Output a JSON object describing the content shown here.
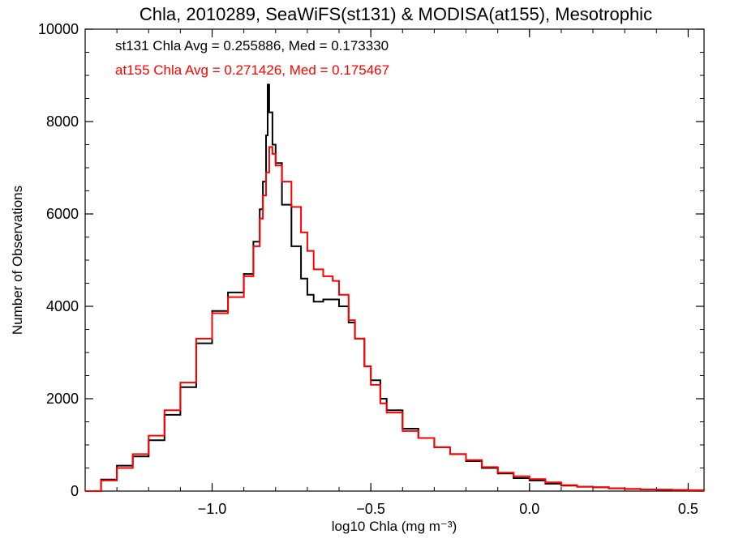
{
  "chart_data": {
    "type": "line",
    "title": "Chla, 2010289, SeaWiFS(st131) & MODISA(at155), Mesotrophic",
    "xlabel": "log10 Chla (mg m⁻³)",
    "ylabel": "Number of Observations",
    "xlim": [
      -1.4,
      0.55
    ],
    "ylim": [
      0,
      10000
    ],
    "x_ticks": [
      -1.0,
      -0.5,
      0.0,
      0.5
    ],
    "x_tick_labels": [
      "−1.0",
      "−0.5",
      "0.0",
      "0.5"
    ],
    "y_ticks": [
      0,
      2000,
      4000,
      6000,
      8000,
      10000
    ],
    "y_tick_labels": [
      "0",
      "2000",
      "4000",
      "6000",
      "8000",
      "10000"
    ],
    "grid": false,
    "annotations": [
      {
        "text": "st131 Chla Avg = 0.255886, Med = 0.173330",
        "color": "#000000"
      },
      {
        "text": "at155 Chla Avg = 0.271426, Med = 0.175467",
        "color": "#ff0000"
      }
    ],
    "series": [
      {
        "color": "#000000",
        "x": [
          -1.4,
          -1.35,
          -1.3,
          -1.25,
          -1.2,
          -1.15,
          -1.1,
          -1.05,
          -1.0,
          -0.95,
          -0.9,
          -0.87,
          -0.85,
          -0.84,
          -0.83,
          -0.825,
          -0.82,
          -0.81,
          -0.8,
          -0.78,
          -0.75,
          -0.72,
          -0.7,
          -0.68,
          -0.65,
          -0.6,
          -0.57,
          -0.55,
          -0.52,
          -0.5,
          -0.47,
          -0.45,
          -0.4,
          -0.35,
          -0.3,
          -0.25,
          -0.2,
          -0.15,
          -0.1,
          -0.05,
          0.0,
          0.05,
          0.1,
          0.15,
          0.2,
          0.25,
          0.3,
          0.35,
          0.4,
          0.45,
          0.5,
          0.55
        ],
        "y": [
          0,
          250,
          550,
          750,
          1100,
          1650,
          2250,
          3200,
          3900,
          4300,
          4700,
          5400,
          6100,
          6700,
          7700,
          8800,
          8200,
          7500,
          7100,
          6200,
          5300,
          4600,
          4250,
          4100,
          4150,
          4000,
          3650,
          3300,
          2700,
          2400,
          2000,
          1750,
          1350,
          1150,
          950,
          800,
          650,
          500,
          380,
          280,
          230,
          160,
          120,
          95,
          85,
          60,
          45,
          35,
          30,
          25,
          20,
          15
        ]
      },
      {
        "color": "#ff0000",
        "x": [
          -1.4,
          -1.35,
          -1.3,
          -1.25,
          -1.2,
          -1.15,
          -1.1,
          -1.05,
          -1.0,
          -0.95,
          -0.9,
          -0.87,
          -0.85,
          -0.84,
          -0.83,
          -0.82,
          -0.81,
          -0.8,
          -0.78,
          -0.75,
          -0.72,
          -0.7,
          -0.68,
          -0.65,
          -0.62,
          -0.6,
          -0.57,
          -0.55,
          -0.52,
          -0.5,
          -0.47,
          -0.45,
          -0.4,
          -0.35,
          -0.3,
          -0.25,
          -0.2,
          -0.15,
          -0.1,
          -0.05,
          0.0,
          0.05,
          0.1,
          0.15,
          0.2,
          0.25,
          0.3,
          0.35,
          0.4,
          0.45,
          0.5,
          0.55
        ],
        "y": [
          0,
          230,
          500,
          800,
          1200,
          1750,
          2350,
          3300,
          3850,
          4200,
          4650,
          5300,
          5900,
          6400,
          6900,
          7450,
          7300,
          7050,
          6700,
          6150,
          5600,
          5200,
          4800,
          4650,
          4550,
          4250,
          3700,
          3300,
          2700,
          2300,
          1900,
          1700,
          1300,
          1150,
          950,
          800,
          670,
          520,
          400,
          320,
          260,
          190,
          130,
          95,
          80,
          60,
          45,
          35,
          28,
          22,
          18,
          15
        ]
      }
    ]
  }
}
